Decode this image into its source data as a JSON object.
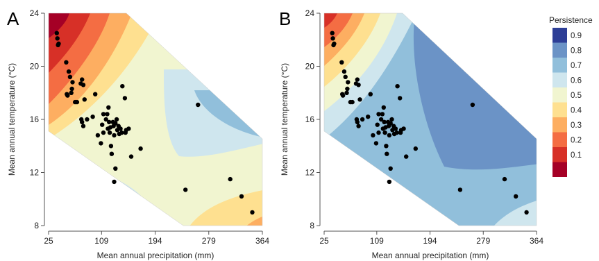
{
  "colors": {
    "palette": [
      "#a50026",
      "#d73027",
      "#f46d43",
      "#fdae61",
      "#fee090",
      "#f1f5d0",
      "#cfe6ee",
      "#91bfdb",
      "#6b93c6",
      "#2d3e96"
    ],
    "point": "#000000"
  },
  "chart_data": [
    {
      "type": "scatter",
      "panel_letter": "A",
      "xlabel": "Mean annual precipitation (mm)",
      "ylabel": "Mean annual temperature (°C)",
      "xlim": [
        25,
        364
      ],
      "ylim": [
        8,
        24
      ],
      "x_ticks": [
        25,
        109,
        194,
        279,
        364
      ],
      "y_ticks": [
        8,
        12,
        16,
        20,
        24
      ],
      "background": "contour of persistence (values range ~0.1 at warm/dry corner to ~0.7 at cool/wet side)",
      "points": [
        [
          38,
          22.5
        ],
        [
          39,
          22.1
        ],
        [
          40,
          21.6
        ],
        [
          41,
          21.7
        ],
        [
          53,
          20.3
        ],
        [
          57,
          19.6
        ],
        [
          59,
          19.2
        ],
        [
          63,
          18.8
        ],
        [
          62,
          18.3
        ],
        [
          61,
          18.0
        ],
        [
          54,
          17.9
        ],
        [
          55,
          17.8
        ],
        [
          67,
          17.3
        ],
        [
          70,
          17.3
        ],
        [
          76,
          18.7
        ],
        [
          78,
          19.0
        ],
        [
          80,
          18.6
        ],
        [
          82,
          17.5
        ],
        [
          77,
          16.0
        ],
        [
          78,
          15.8
        ],
        [
          80,
          15.5
        ],
        [
          86,
          16.0
        ],
        [
          95,
          16.2
        ],
        [
          99,
          17.9
        ],
        [
          103,
          14.8
        ],
        [
          108,
          14.2
        ],
        [
          110,
          15.6
        ],
        [
          112,
          16.4
        ],
        [
          112,
          15.0
        ],
        [
          116,
          16.0
        ],
        [
          118,
          16.4
        ],
        [
          119,
          15.3
        ],
        [
          120,
          16.9
        ],
        [
          121,
          15.8
        ],
        [
          122,
          15.0
        ],
        [
          123,
          15.4
        ],
        [
          124,
          14.0
        ],
        [
          125,
          13.4
        ],
        [
          127,
          15.8
        ],
        [
          128,
          15.5
        ],
        [
          129,
          14.8
        ],
        [
          131,
          15.7
        ],
        [
          133,
          16.0
        ],
        [
          134,
          15.2
        ],
        [
          136,
          15.5
        ],
        [
          137,
          14.9
        ],
        [
          139,
          15.3
        ],
        [
          141,
          15.0
        ],
        [
          142,
          18.5
        ],
        [
          146,
          17.6
        ],
        [
          147,
          15.0
        ],
        [
          148,
          15.2
        ],
        [
          152,
          15.3
        ],
        [
          156,
          13.2
        ],
        [
          131,
          12.3
        ],
        [
          129,
          11.3
        ],
        [
          171,
          13.8
        ],
        [
          262,
          17.1
        ],
        [
          242,
          10.7
        ],
        [
          313,
          11.5
        ],
        [
          331,
          10.2
        ],
        [
          348,
          9.0
        ]
      ]
    },
    {
      "type": "scatter",
      "panel_letter": "B",
      "xlabel": "Mean annual precipitation (mm)",
      "ylabel": "Mean annual temperature (°C)",
      "xlim": [
        25,
        364
      ],
      "ylim": [
        8,
        24
      ],
      "x_ticks": [
        25,
        109,
        194,
        279,
        364
      ],
      "y_ticks": [
        8,
        12,
        16,
        20,
        24
      ],
      "background": "contour of persistence (values range ~0.1 at warm/dry corner to ~0.8 at wet side)",
      "points": [
        [
          38,
          22.5
        ],
        [
          39,
          22.1
        ],
        [
          40,
          21.6
        ],
        [
          41,
          21.7
        ],
        [
          53,
          20.3
        ],
        [
          57,
          19.6
        ],
        [
          59,
          19.2
        ],
        [
          63,
          18.8
        ],
        [
          62,
          18.3
        ],
        [
          61,
          18.0
        ],
        [
          54,
          17.9
        ],
        [
          55,
          17.8
        ],
        [
          67,
          17.3
        ],
        [
          70,
          17.3
        ],
        [
          76,
          18.7
        ],
        [
          78,
          19.0
        ],
        [
          80,
          18.6
        ],
        [
          82,
          17.5
        ],
        [
          77,
          16.0
        ],
        [
          78,
          15.8
        ],
        [
          80,
          15.5
        ],
        [
          86,
          16.0
        ],
        [
          95,
          16.2
        ],
        [
          99,
          17.9
        ],
        [
          103,
          14.8
        ],
        [
          108,
          14.2
        ],
        [
          110,
          15.6
        ],
        [
          112,
          16.4
        ],
        [
          112,
          15.0
        ],
        [
          116,
          16.0
        ],
        [
          118,
          16.4
        ],
        [
          119,
          15.3
        ],
        [
          120,
          16.9
        ],
        [
          121,
          15.8
        ],
        [
          122,
          15.0
        ],
        [
          123,
          15.4
        ],
        [
          124,
          14.0
        ],
        [
          125,
          13.4
        ],
        [
          127,
          15.8
        ],
        [
          128,
          15.5
        ],
        [
          129,
          14.8
        ],
        [
          131,
          15.7
        ],
        [
          133,
          16.0
        ],
        [
          134,
          15.2
        ],
        [
          136,
          15.5
        ],
        [
          137,
          14.9
        ],
        [
          139,
          15.3
        ],
        [
          141,
          15.0
        ],
        [
          142,
          18.5
        ],
        [
          146,
          17.6
        ],
        [
          147,
          15.0
        ],
        [
          148,
          15.2
        ],
        [
          152,
          15.3
        ],
        [
          156,
          13.2
        ],
        [
          131,
          12.3
        ],
        [
          129,
          11.3
        ],
        [
          171,
          13.8
        ],
        [
          262,
          17.1
        ],
        [
          242,
          10.7
        ],
        [
          313,
          11.5
        ],
        [
          331,
          10.2
        ],
        [
          348,
          9.0
        ]
      ]
    }
  ],
  "legend": {
    "title": "Persistence",
    "placement": "right",
    "entries": [
      {
        "label": "0.9",
        "color": "#2d3e96"
      },
      {
        "label": "0.8",
        "color": "#6b93c6"
      },
      {
        "label": "0.7",
        "color": "#91bfdb"
      },
      {
        "label": "0.6",
        "color": "#cfe6ee"
      },
      {
        "label": "0.5",
        "color": "#f1f5d0"
      },
      {
        "label": "0.4",
        "color": "#fee090"
      },
      {
        "label": "0.3",
        "color": "#fdae61"
      },
      {
        "label": "0.2",
        "color": "#f46d43"
      },
      {
        "label": "0.1",
        "color": "#d73027"
      },
      {
        "label": "",
        "color": "#a50026"
      }
    ]
  }
}
